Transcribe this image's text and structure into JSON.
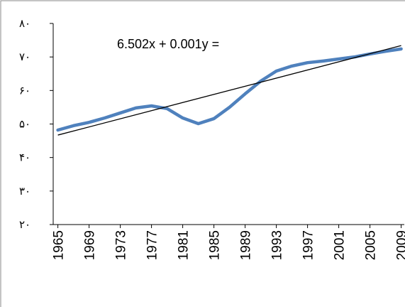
{
  "chart_data": {
    "type": "line",
    "annotation": "6.502x + 0.001y =",
    "x": [
      1965,
      1967,
      1969,
      1971,
      1973,
      1975,
      1977,
      1979,
      1981,
      1983,
      1985,
      1987,
      1989,
      1991,
      1993,
      1995,
      1997,
      1999,
      2001,
      2003,
      2005,
      2007,
      2009
    ],
    "series": [
      {
        "color": "#4f81bd",
        "values": [
          48.2,
          49.5,
          50.5,
          51.8,
          53.3,
          54.8,
          55.4,
          54.6,
          51.8,
          50.1,
          51.6,
          55.0,
          59.0,
          62.8,
          65.8,
          67.3,
          68.3,
          68.8,
          69.4,
          70.0,
          70.9,
          71.7,
          72.4
        ]
      }
    ],
    "trendline": {
      "color": "#000000",
      "x": [
        1965,
        2009
      ],
      "values": [
        46.7,
        73.4
      ]
    },
    "xlim": [
      1964.4,
      2009.4
    ],
    "xticks": [
      1965,
      1969,
      1973,
      1977,
      1981,
      1985,
      1989,
      1993,
      1997,
      2001,
      2005,
      2009
    ],
    "ylim": [
      20,
      80
    ],
    "yticks": [
      {
        "value": 20,
        "label": "۲۰"
      },
      {
        "value": 30,
        "label": "۳۰"
      },
      {
        "value": 40,
        "label": "۴۰"
      },
      {
        "value": 50,
        "label": "۵۰"
      },
      {
        "value": 60,
        "label": "۶۰"
      },
      {
        "value": 70,
        "label": "۷۰"
      },
      {
        "value": 80,
        "label": "۸۰"
      }
    ]
  }
}
